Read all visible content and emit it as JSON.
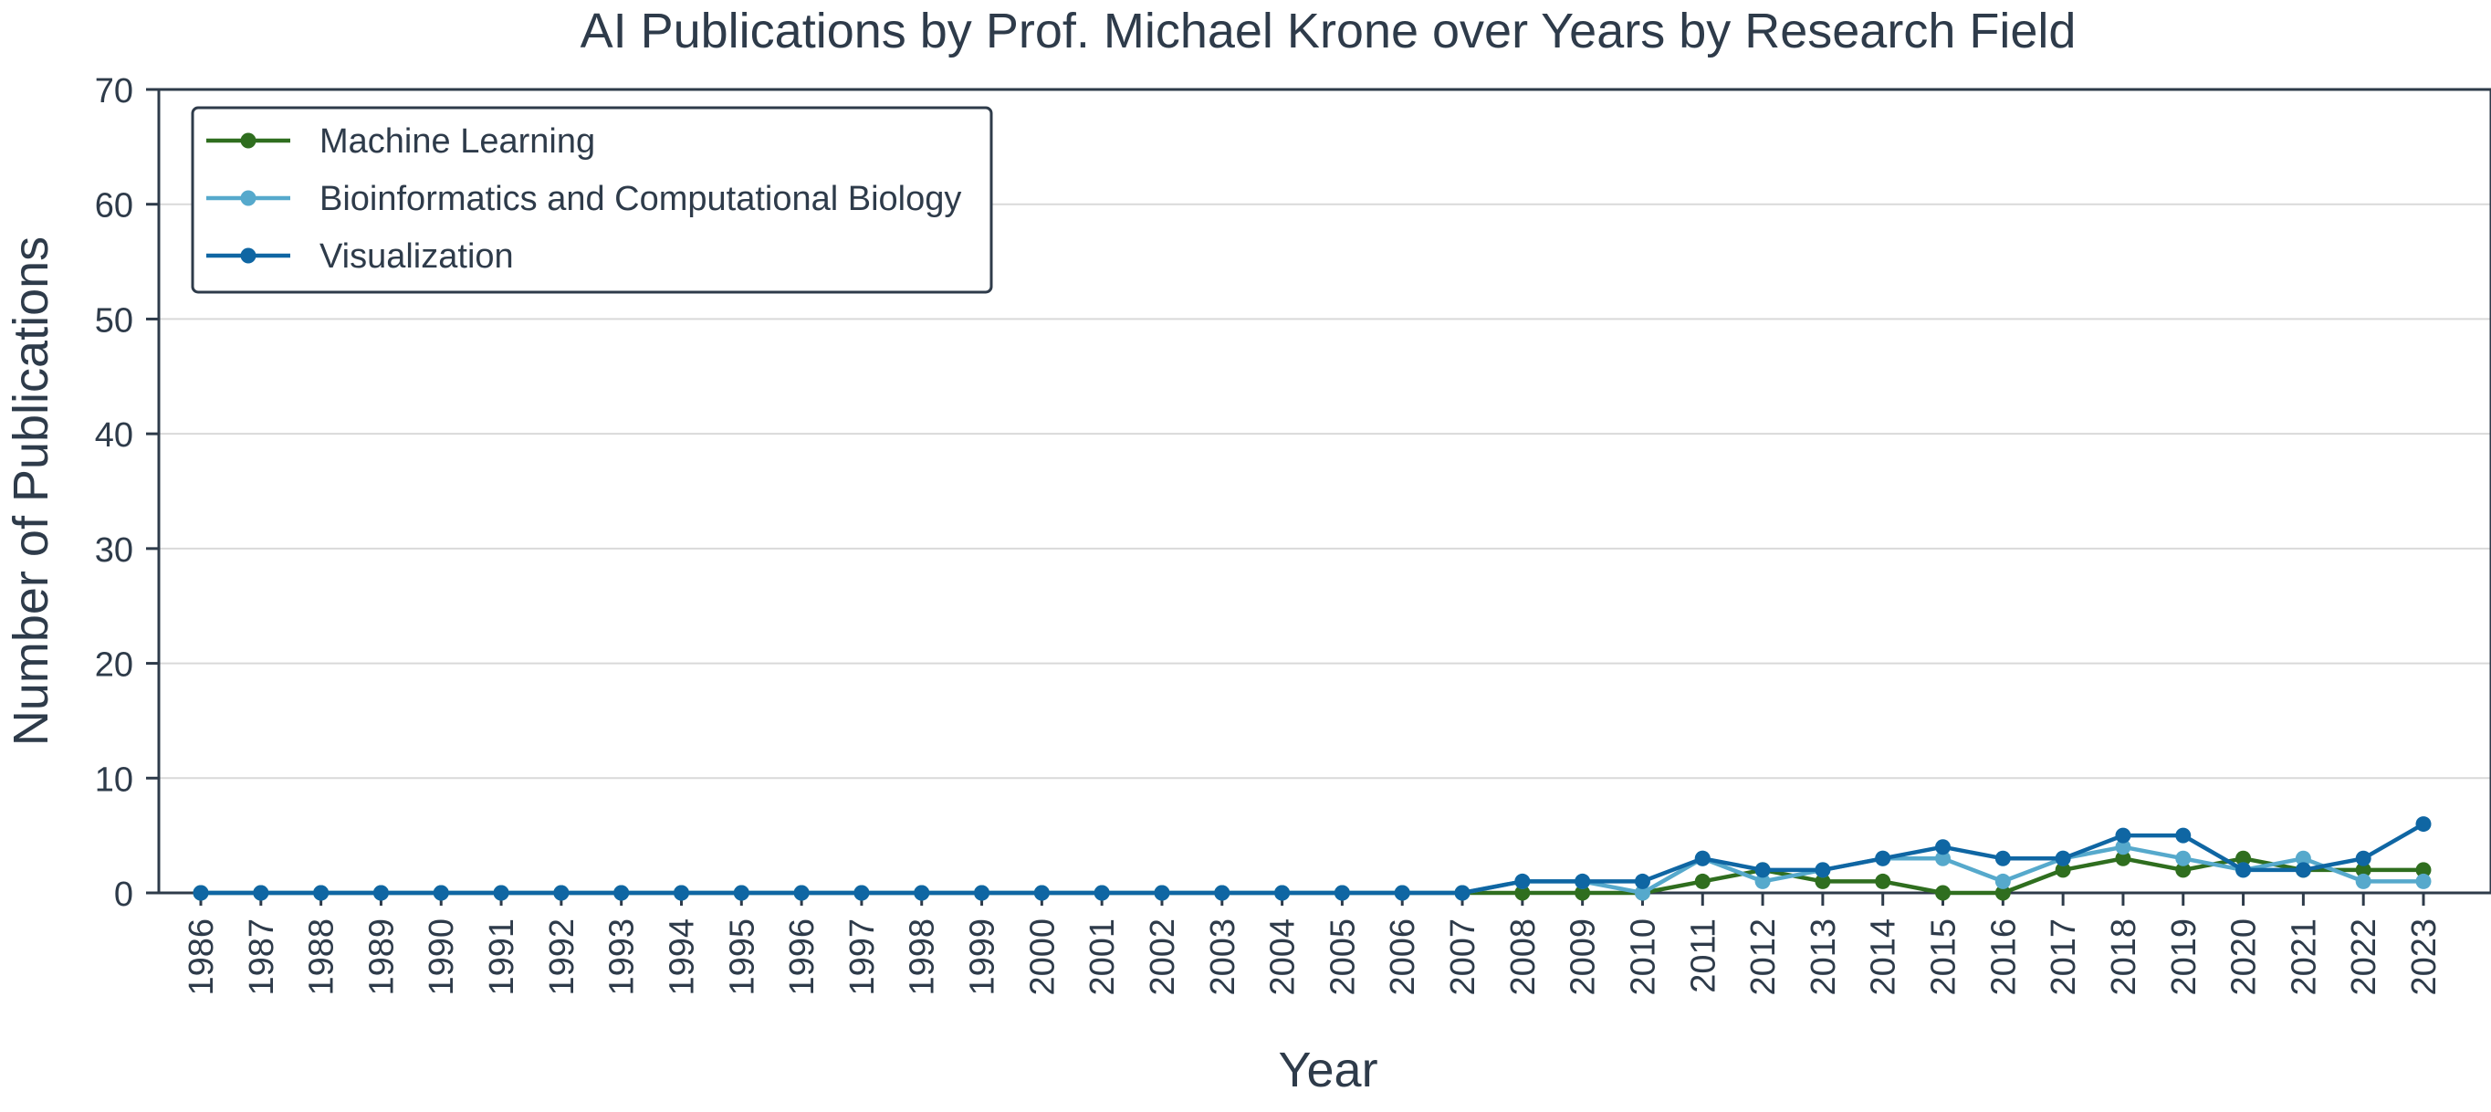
{
  "chart_data": {
    "type": "line",
    "title": "AI Publications by Prof. Michael Krone over Years by Research Field",
    "xlabel": "Year",
    "ylabel": "Number of Publications",
    "ylim": [
      0,
      70
    ],
    "yticks": [
      0,
      10,
      20,
      30,
      40,
      50,
      60,
      70
    ],
    "grid": "horizontal",
    "legend_position": "top-left",
    "x": [
      1986,
      1987,
      1988,
      1989,
      1990,
      1991,
      1992,
      1993,
      1994,
      1995,
      1996,
      1997,
      1998,
      1999,
      2000,
      2001,
      2002,
      2003,
      2004,
      2005,
      2006,
      2007,
      2008,
      2009,
      2010,
      2011,
      2012,
      2013,
      2014,
      2015,
      2016,
      2017,
      2018,
      2019,
      2020,
      2021,
      2022,
      2023
    ],
    "series": [
      {
        "name": "Machine Learning",
        "color": "#2f6e1f",
        "values": [
          0,
          0,
          0,
          0,
          0,
          0,
          0,
          0,
          0,
          0,
          0,
          0,
          0,
          0,
          0,
          0,
          0,
          0,
          0,
          0,
          0,
          0,
          0,
          0,
          0,
          1,
          2,
          1,
          1,
          0,
          0,
          2,
          3,
          2,
          3,
          2,
          2,
          2
        ]
      },
      {
        "name": "Bioinformatics and Computational Biology",
        "color": "#56a9cc",
        "values": [
          0,
          0,
          0,
          0,
          0,
          0,
          0,
          0,
          0,
          0,
          0,
          0,
          0,
          0,
          0,
          0,
          0,
          0,
          0,
          0,
          0,
          0,
          1,
          1,
          0,
          3,
          1,
          2,
          3,
          3,
          1,
          3,
          4,
          3,
          2,
          3,
          1,
          1
        ]
      },
      {
        "name": "Visualization",
        "color": "#0f66a3",
        "values": [
          0,
          0,
          0,
          0,
          0,
          0,
          0,
          0,
          0,
          0,
          0,
          0,
          0,
          0,
          0,
          0,
          0,
          0,
          0,
          0,
          0,
          0,
          1,
          1,
          1,
          3,
          2,
          2,
          3,
          4,
          3,
          3,
          5,
          5,
          2,
          2,
          3,
          6
        ]
      }
    ]
  }
}
